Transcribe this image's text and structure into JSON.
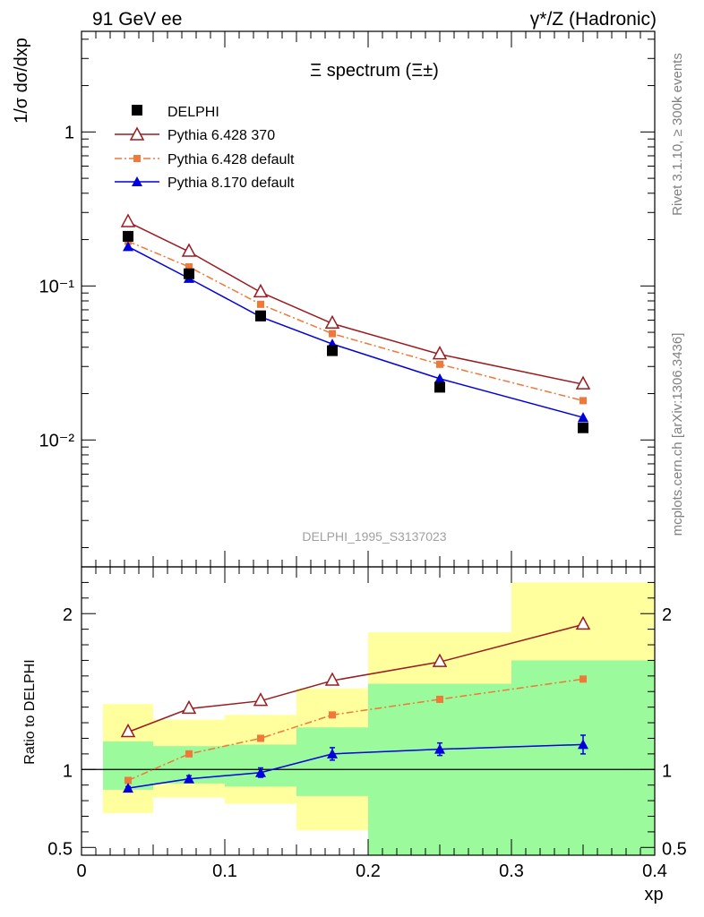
{
  "chart_data": [
    {
      "type": "line",
      "header": {
        "left": "91 GeV ee",
        "right": "γ*/Z (Hadronic)"
      },
      "title": "Ξ spectrum (Ξ±)",
      "watermark": "DELPHI_1995_S3137023",
      "ylabel": "1/σ dσ/dxp",
      "yscale": "log",
      "ylim": [
        0.0015,
        4.5
      ],
      "xlim": [
        0,
        0.4
      ],
      "y_ticks": [
        {
          "value": 0.01,
          "label": "10⁻²"
        },
        {
          "value": 0.1,
          "label": "10⁻¹"
        },
        {
          "value": 1,
          "label": "1"
        }
      ],
      "legend_position": "top-left",
      "data": {
        "name": "DELPHI",
        "x": [
          0.0325,
          0.075,
          0.125,
          0.175,
          0.25,
          0.35
        ],
        "y": [
          0.21,
          0.12,
          0.064,
          0.038,
          0.022,
          0.012
        ]
      },
      "series": [
        {
          "name": "Pythia 6.428 370",
          "color": "#9a1c20",
          "marker": "open-triangle",
          "line": "solid",
          "x": [
            0.0325,
            0.075,
            0.125,
            0.175,
            0.25,
            0.35
          ],
          "y": [
            0.26,
            0.167,
            0.091,
            0.057,
            0.036,
            0.023
          ]
        },
        {
          "name": "Pythia 6.428 default",
          "color": "#f07838",
          "marker": "square",
          "line": "dashdot",
          "x": [
            0.0325,
            0.075,
            0.125,
            0.175,
            0.25,
            0.35
          ],
          "y": [
            0.195,
            0.133,
            0.076,
            0.049,
            0.031,
            0.018
          ]
        },
        {
          "name": "Pythia 8.170 default",
          "color": "#0000dd",
          "marker": "filled-triangle",
          "line": "solid",
          "x": [
            0.0325,
            0.075,
            0.125,
            0.175,
            0.25,
            0.35
          ],
          "y": [
            0.18,
            0.112,
            0.063,
            0.042,
            0.025,
            0.014
          ]
        }
      ]
    },
    {
      "type": "line",
      "ylabel": "Ratio to DELPHI",
      "xlabel": "xp",
      "ylim": [
        0.45,
        2.3
      ],
      "xlim": [
        0,
        0.4
      ],
      "y_ticks": [
        {
          "value": 0.5,
          "label": "0.5"
        },
        {
          "value": 1,
          "label": "1"
        },
        {
          "value": 2,
          "label": "2"
        }
      ],
      "x_ticks": [
        {
          "value": 0,
          "label": "0"
        },
        {
          "value": 0.1,
          "label": "0.1"
        },
        {
          "value": 0.2,
          "label": "0.2"
        },
        {
          "value": 0.3,
          "label": "0.3"
        },
        {
          "value": 0.4,
          "label": "0.4"
        }
      ],
      "reference_line": 1,
      "bands": [
        {
          "x0": 0.015,
          "x1": 0.05,
          "stat": [
            0.87,
            1.18
          ],
          "total": [
            0.72,
            1.42
          ]
        },
        {
          "x0": 0.05,
          "x1": 0.1,
          "stat": [
            0.91,
            1.15
          ],
          "total": [
            0.82,
            1.32
          ]
        },
        {
          "x0": 0.1,
          "x1": 0.15,
          "stat": [
            0.89,
            1.16
          ],
          "total": [
            0.78,
            1.35
          ]
        },
        {
          "x0": 0.15,
          "x1": 0.2,
          "stat": [
            0.83,
            1.27
          ],
          "total": [
            0.61,
            1.52
          ]
        },
        {
          "x0": 0.2,
          "x1": 0.3,
          "stat": [
            0.4,
            1.55
          ],
          "total": [
            0.4,
            1.88
          ]
        },
        {
          "x0": 0.3,
          "x1": 0.4,
          "stat": [
            0.4,
            1.7
          ],
          "total": [
            0.4,
            2.2
          ]
        }
      ],
      "series": [
        {
          "name": "Pythia 6.428 370",
          "color": "#9a1c20",
          "marker": "open-triangle",
          "line": "solid",
          "x": [
            0.0325,
            0.075,
            0.125,
            0.175,
            0.25,
            0.35
          ],
          "y": [
            1.24,
            1.39,
            1.44,
            1.57,
            1.69,
            1.93
          ]
        },
        {
          "name": "Pythia 6.428 default",
          "color": "#f07838",
          "marker": "square",
          "line": "dashdot",
          "x": [
            0.0325,
            0.075,
            0.125,
            0.175,
            0.25,
            0.35
          ],
          "y": [
            0.93,
            1.1,
            1.2,
            1.35,
            1.45,
            1.58
          ]
        },
        {
          "name": "Pythia 8.170 default",
          "color": "#0000dd",
          "marker": "filled-triangle",
          "line": "solid",
          "x": [
            0.0325,
            0.075,
            0.125,
            0.175,
            0.25,
            0.35
          ],
          "y": [
            0.88,
            0.94,
            0.98,
            1.1,
            1.13,
            1.16
          ],
          "err": [
            0.01,
            0.02,
            0.03,
            0.04,
            0.04,
            0.06
          ]
        }
      ]
    }
  ],
  "side_labels": {
    "rivet": "Rivet 3.1.10, ≥ 300k events",
    "mcplots": "mcplots.cern.ch [arXiv:1306.3436]"
  },
  "colors": {
    "stat_band": "#9bfa9b",
    "total_band": "#ffff9d",
    "reference": "#000000"
  }
}
